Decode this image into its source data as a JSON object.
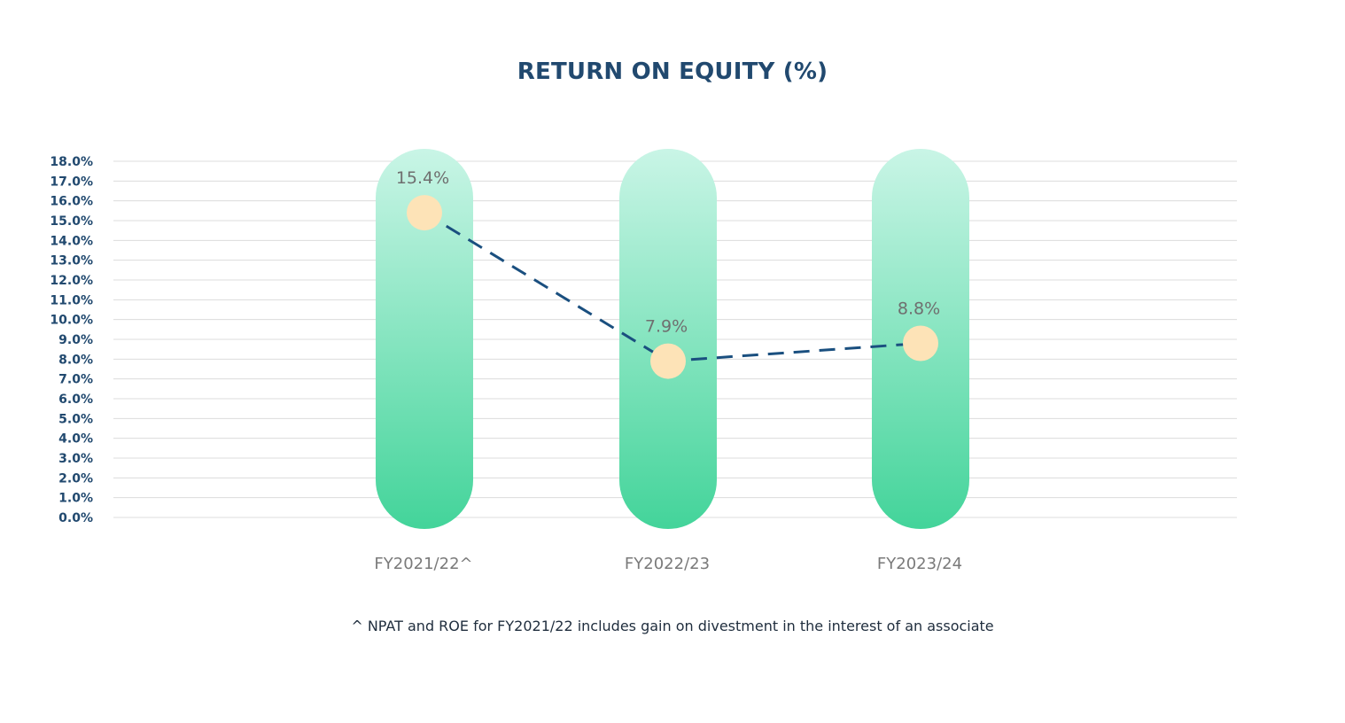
{
  "chart_data": {
    "type": "line",
    "title": "RETURN ON EQUITY (%)",
    "categories": [
      "FY2021/22^",
      "FY2022/23",
      "FY2023/24"
    ],
    "values": [
      15.4,
      7.9,
      8.8
    ],
    "data_labels": [
      "15.4%",
      "7.9%",
      "8.8%"
    ],
    "y_ticks": [
      "0.0%",
      "1.0%",
      "2.0%",
      "3.0%",
      "4.0%",
      "5.0%",
      "6.0%",
      "7.0%",
      "8.0%",
      "9.0%",
      "10.0%",
      "11.0%",
      "12.0%",
      "13.0%",
      "14.0%",
      "15.0%",
      "16.0%",
      "17.0%",
      "18.0%"
    ],
    "ylim": [
      0,
      18
    ],
    "grid": true,
    "colors": {
      "title": "#21496f",
      "line": "#1a4f7f",
      "marker": "#fde3b7",
      "bar_top": "#c9f5e6",
      "bar_bottom": "#43d49a",
      "grid": "#dcdcdc"
    }
  },
  "footnote": "^ NPAT and ROE for FY2021/22 includes gain on divestment in the interest of an associate"
}
